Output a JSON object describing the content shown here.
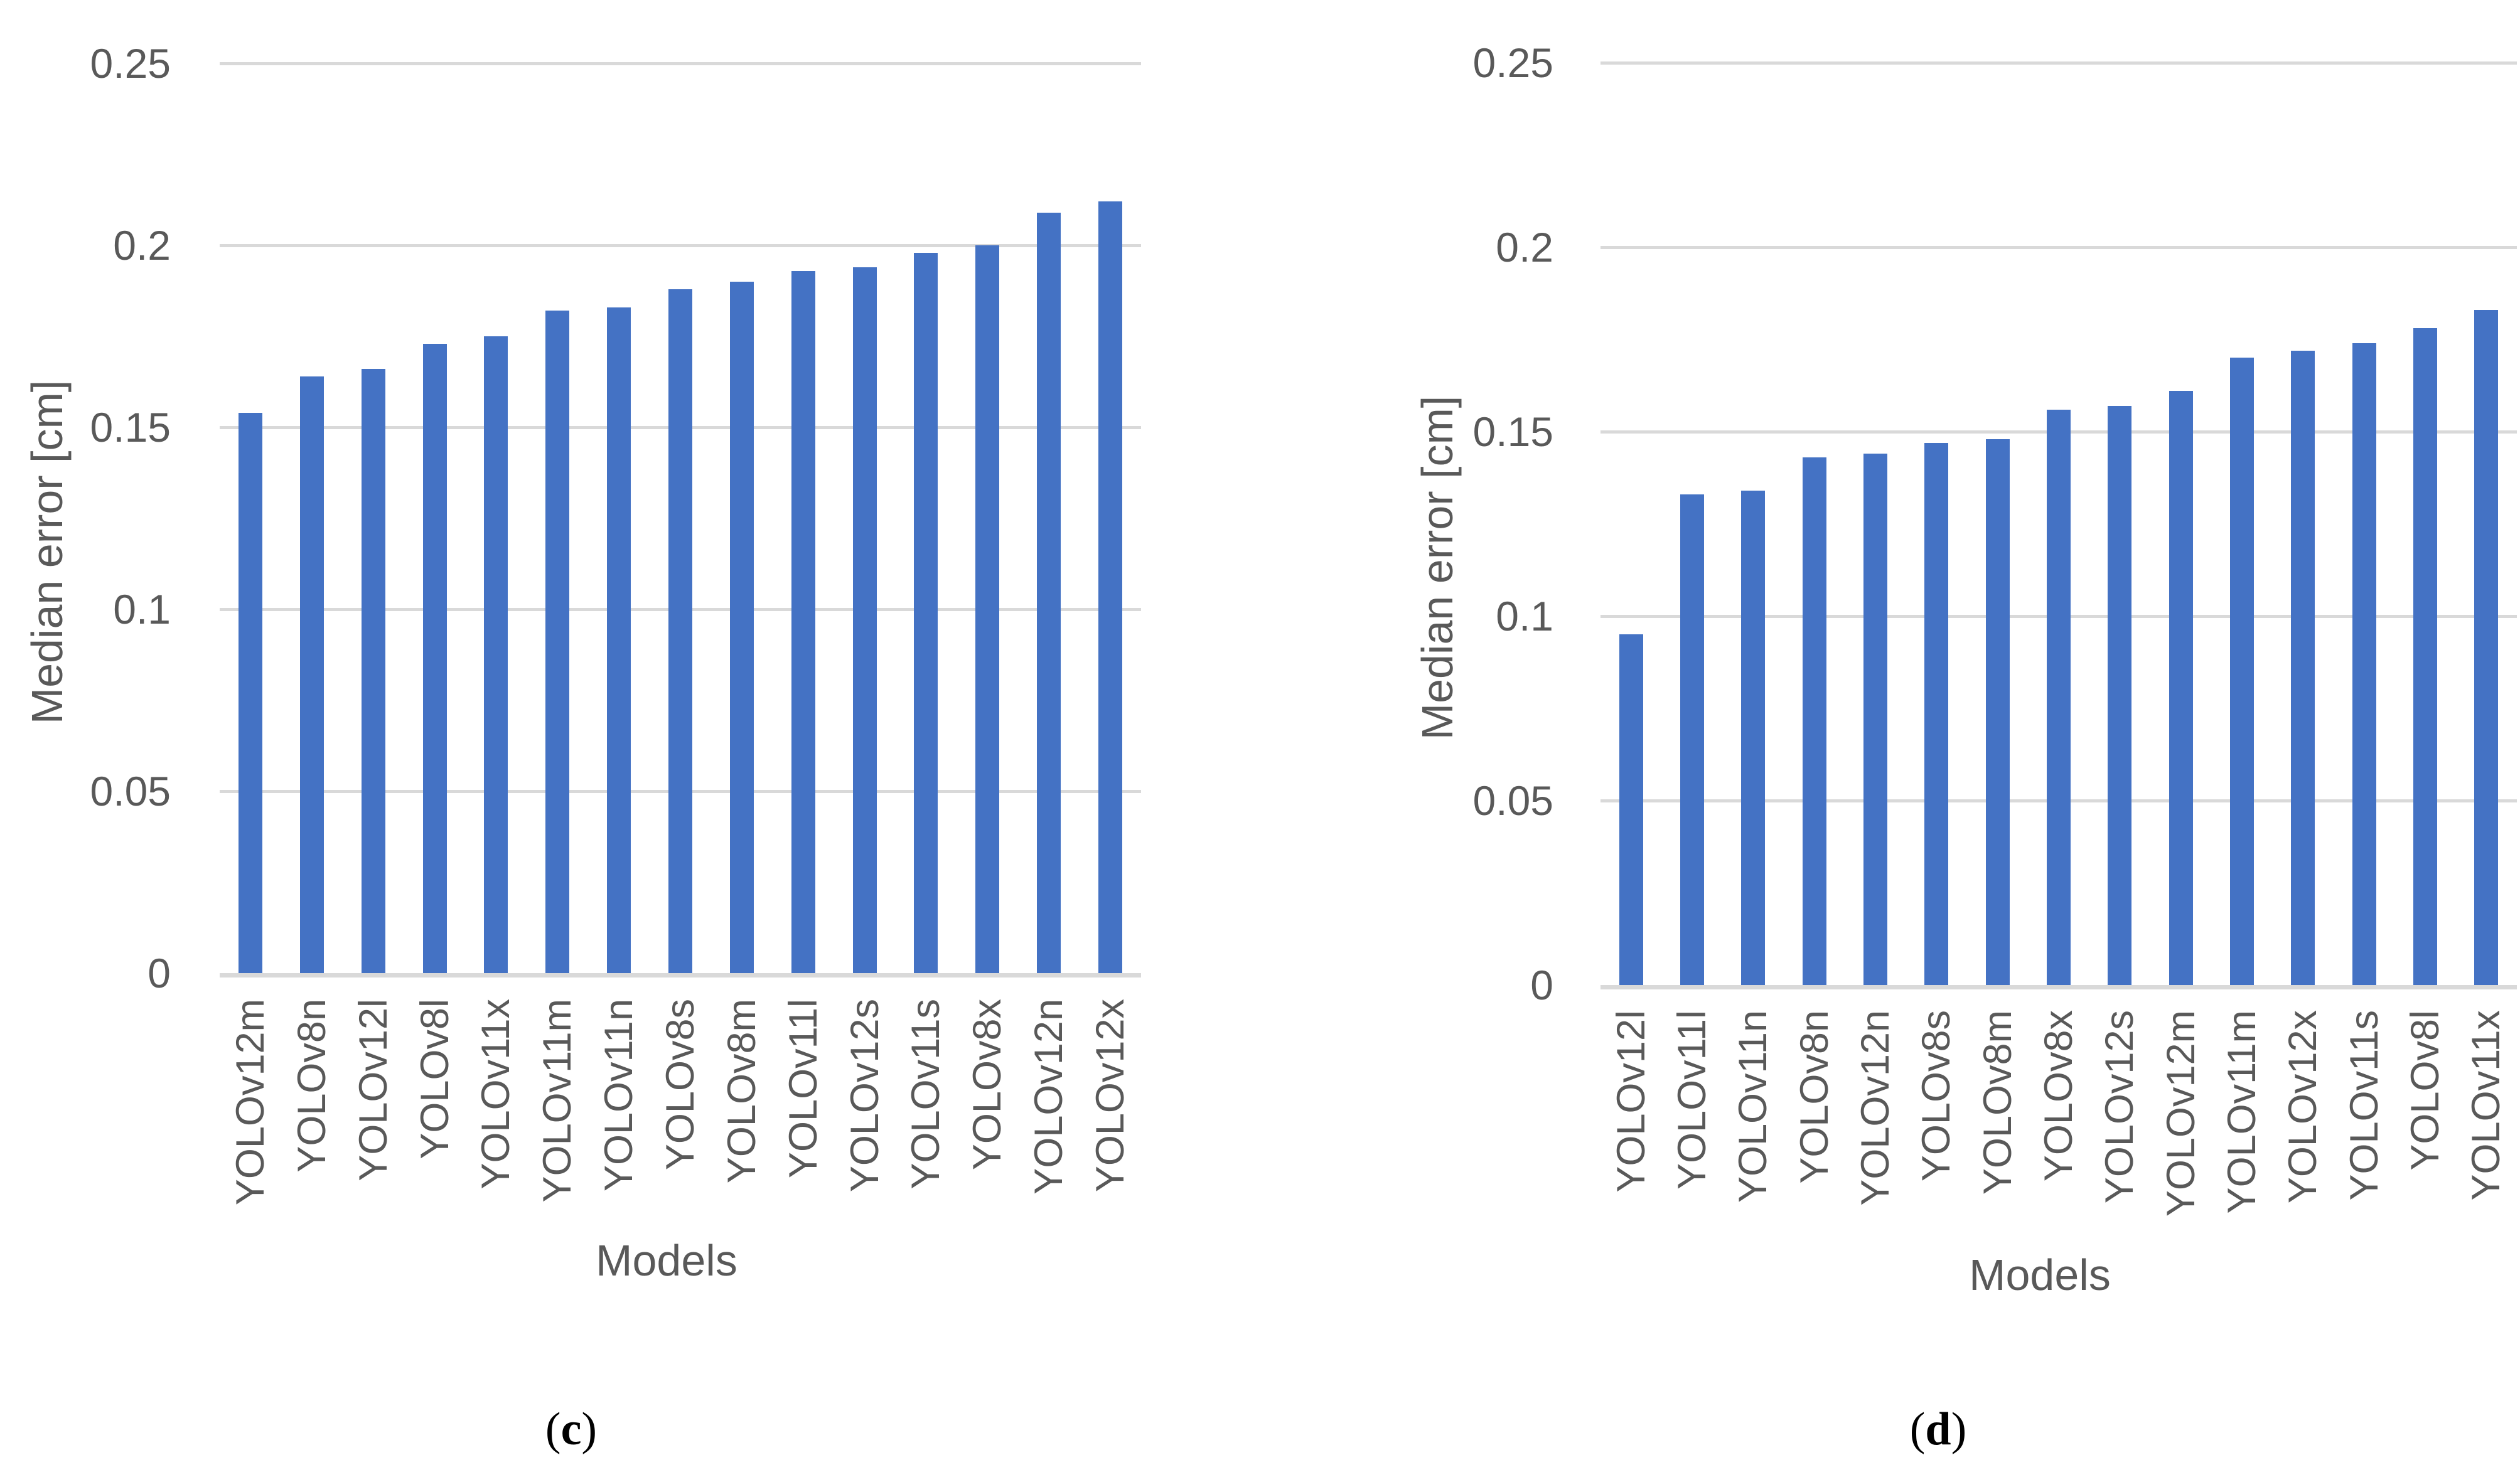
{
  "figure": {
    "background": "#ffffff",
    "bar_color": "#4472C4",
    "gridline_color": "#D9D9D9",
    "axis_text_color": "#595959",
    "caption_color": "#000000"
  },
  "chart_data": [
    {
      "id": "c",
      "type": "bar",
      "caption": "(c)",
      "caption_letter": "c",
      "xlabel": "Models",
      "ylabel": "Median error [cm]",
      "ylim": [
        0,
        0.25
      ],
      "y_tick_values": [
        0.25,
        0.2,
        0.15,
        0.1,
        0.05,
        0
      ],
      "y_tick_labels": [
        "0.25",
        "0.2",
        "0.15",
        "0.1",
        "0.05",
        "0"
      ],
      "grid": true,
      "legend": false,
      "categories": [
        "YOLOv12m",
        "YOLOv8n",
        "YOLOv12l",
        "YOLOv8l",
        "YOLOv11x",
        "YOLOv11m",
        "YOLOv11n",
        "YOLOv8s",
        "YOLOv8m",
        "YOLOv11l",
        "YOLOv12s",
        "YOLOv11s",
        "YOLOv8x",
        "YOLOv12n",
        "YOLOv12x"
      ],
      "values": [
        0.154,
        0.164,
        0.166,
        0.173,
        0.175,
        0.182,
        0.183,
        0.188,
        0.19,
        0.193,
        0.194,
        0.198,
        0.2,
        0.209,
        0.212
      ]
    },
    {
      "id": "d",
      "type": "bar",
      "caption": "(d)",
      "caption_letter": "d",
      "xlabel": "Models",
      "ylabel": "Median error [cm]",
      "ylim": [
        0,
        0.25
      ],
      "y_tick_values": [
        0.25,
        0.2,
        0.15,
        0.1,
        0.05,
        0
      ],
      "y_tick_labels": [
        "0.25",
        "0.2",
        "0.15",
        "0.1",
        "0.05",
        "0"
      ],
      "grid": true,
      "legend": false,
      "categories": [
        "YOLOv12l",
        "YOLOv11l",
        "YOLOv11n",
        "YOLOv8n",
        "YOLOv12n",
        "YOLOv8s",
        "YOLOv8m",
        "YOLOv8x",
        "YOLOv12s",
        "YOLOv12m",
        "YOLOv11m",
        "YOLOv12x",
        "YOLOv11s",
        "YOLOv8l",
        "YOLOv11x"
      ],
      "values": [
        0.095,
        0.133,
        0.134,
        0.143,
        0.144,
        0.147,
        0.148,
        0.156,
        0.157,
        0.161,
        0.17,
        0.172,
        0.174,
        0.178,
        0.183
      ]
    }
  ]
}
